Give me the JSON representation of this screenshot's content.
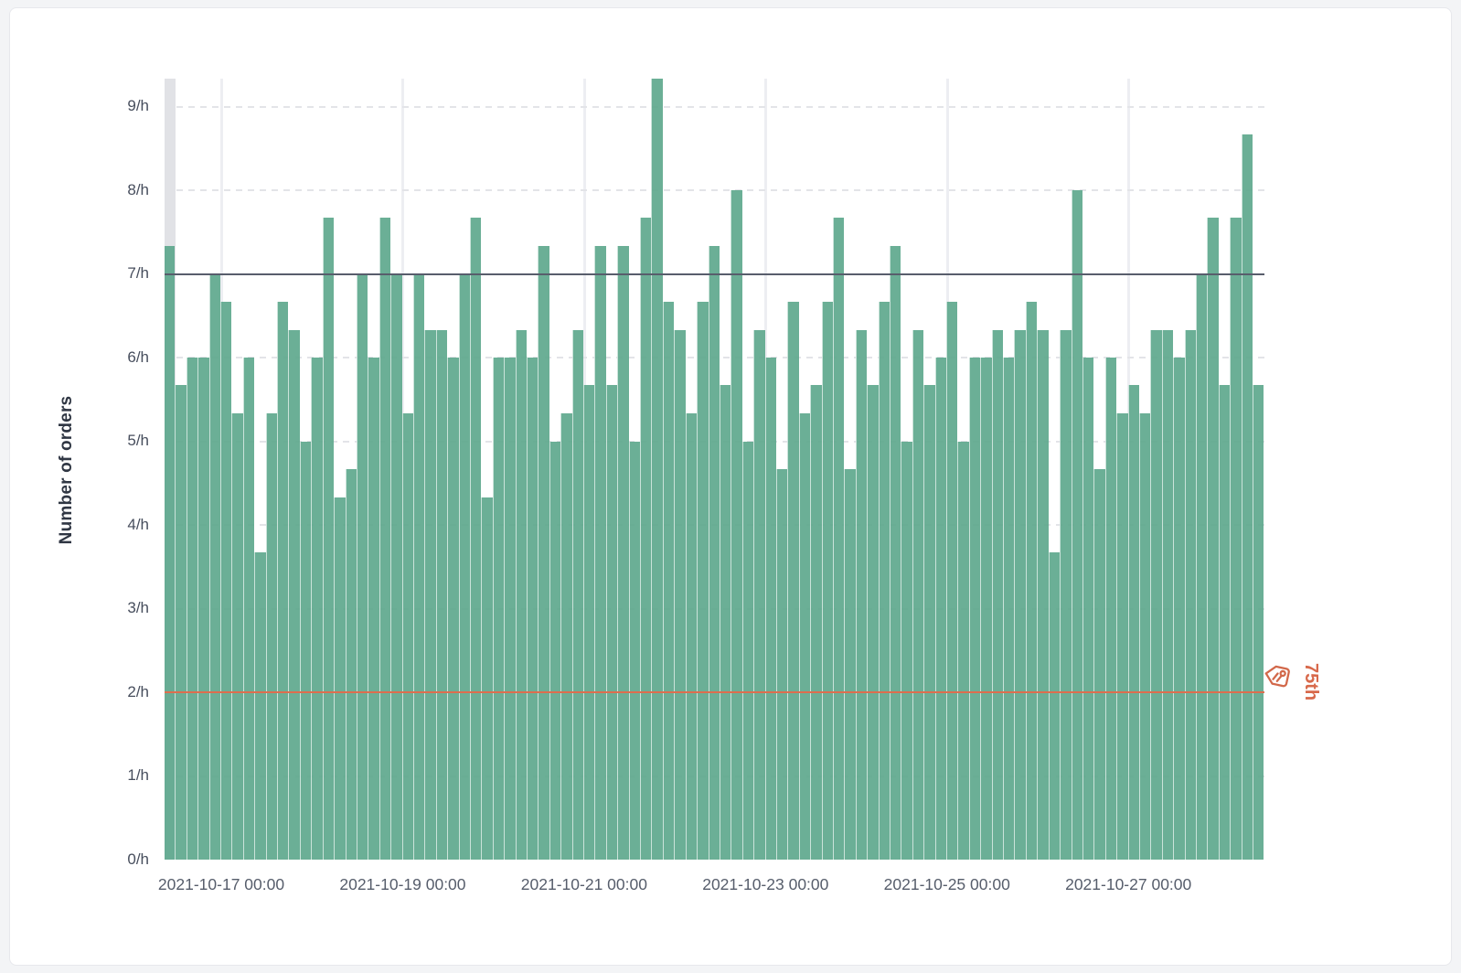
{
  "chart_data": {
    "type": "bar",
    "title": "",
    "ylabel": "Number of orders",
    "xlabel": "",
    "legend": "none",
    "grid": "horizontal-dashed, vertical-solid-at-date-ticks",
    "ylim": [
      0,
      9.3333
    ],
    "y_tick_labels": [
      "0/h",
      "1/h",
      "2/h",
      "3/h",
      "4/h",
      "5/h",
      "6/h",
      "7/h",
      "8/h",
      "9/h"
    ],
    "x_tick_labels": [
      "2021-10-17 00:00",
      "2021-10-19 00:00",
      "2021-10-21 00:00",
      "2021-10-23 00:00",
      "2021-10-25 00:00",
      "2021-10-27 00:00"
    ],
    "x_tick_bar_offsets": [
      5,
      21,
      37,
      53,
      69,
      85
    ],
    "bar_count": 97,
    "values": [
      7.33,
      5.67,
      6,
      6,
      7,
      6.67,
      5.33,
      6,
      3.67,
      5.33,
      6.67,
      6.33,
      5,
      6,
      7.67,
      4.33,
      4.67,
      7,
      6,
      7.67,
      7,
      5.33,
      7,
      6.33,
      6.33,
      6,
      7,
      7.67,
      4.33,
      6,
      6,
      6.33,
      6,
      7.33,
      5,
      5.33,
      6.33,
      5.67,
      7.33,
      5.67,
      7.33,
      5,
      7.67,
      9.33,
      6.67,
      6.33,
      5.33,
      6.67,
      7.33,
      5.67,
      8,
      5,
      6.33,
      6,
      4.67,
      6.67,
      5.33,
      5.67,
      6.67,
      7.67,
      4.67,
      6.33,
      5.67,
      6.67,
      7.33,
      5,
      6.33,
      5.67,
      6,
      6.67,
      5,
      6,
      6,
      6.33,
      6,
      6.33,
      6.67,
      6.33,
      3.67,
      6.33,
      8,
      6,
      4.67,
      6,
      5.33,
      5.67,
      5.33,
      6.33,
      6.33,
      6,
      6.33,
      7,
      7.67,
      5.67,
      7.67,
      8.67,
      5.67
    ],
    "highlighted_bar_index": 0,
    "reference_lines": [
      {
        "value": 7,
        "label": "",
        "color": "#585d6c",
        "style": "solid"
      },
      {
        "value": 2,
        "label": "75th",
        "color": "#dd6e4e",
        "style": "solid",
        "icon": "tag-icon"
      }
    ],
    "colors": {
      "bar": "#6fb199",
      "bar_highlight_band": "#e1e2e6",
      "h_gridline": "#e3e4e8",
      "v_gridline": "#edeef2",
      "axis_tick_text": "#4f5665",
      "y_title_text": "#2f3643",
      "accent_orange": "#d8694b",
      "page_background": "#f3f4f6",
      "card_background": "#ffffff"
    }
  }
}
